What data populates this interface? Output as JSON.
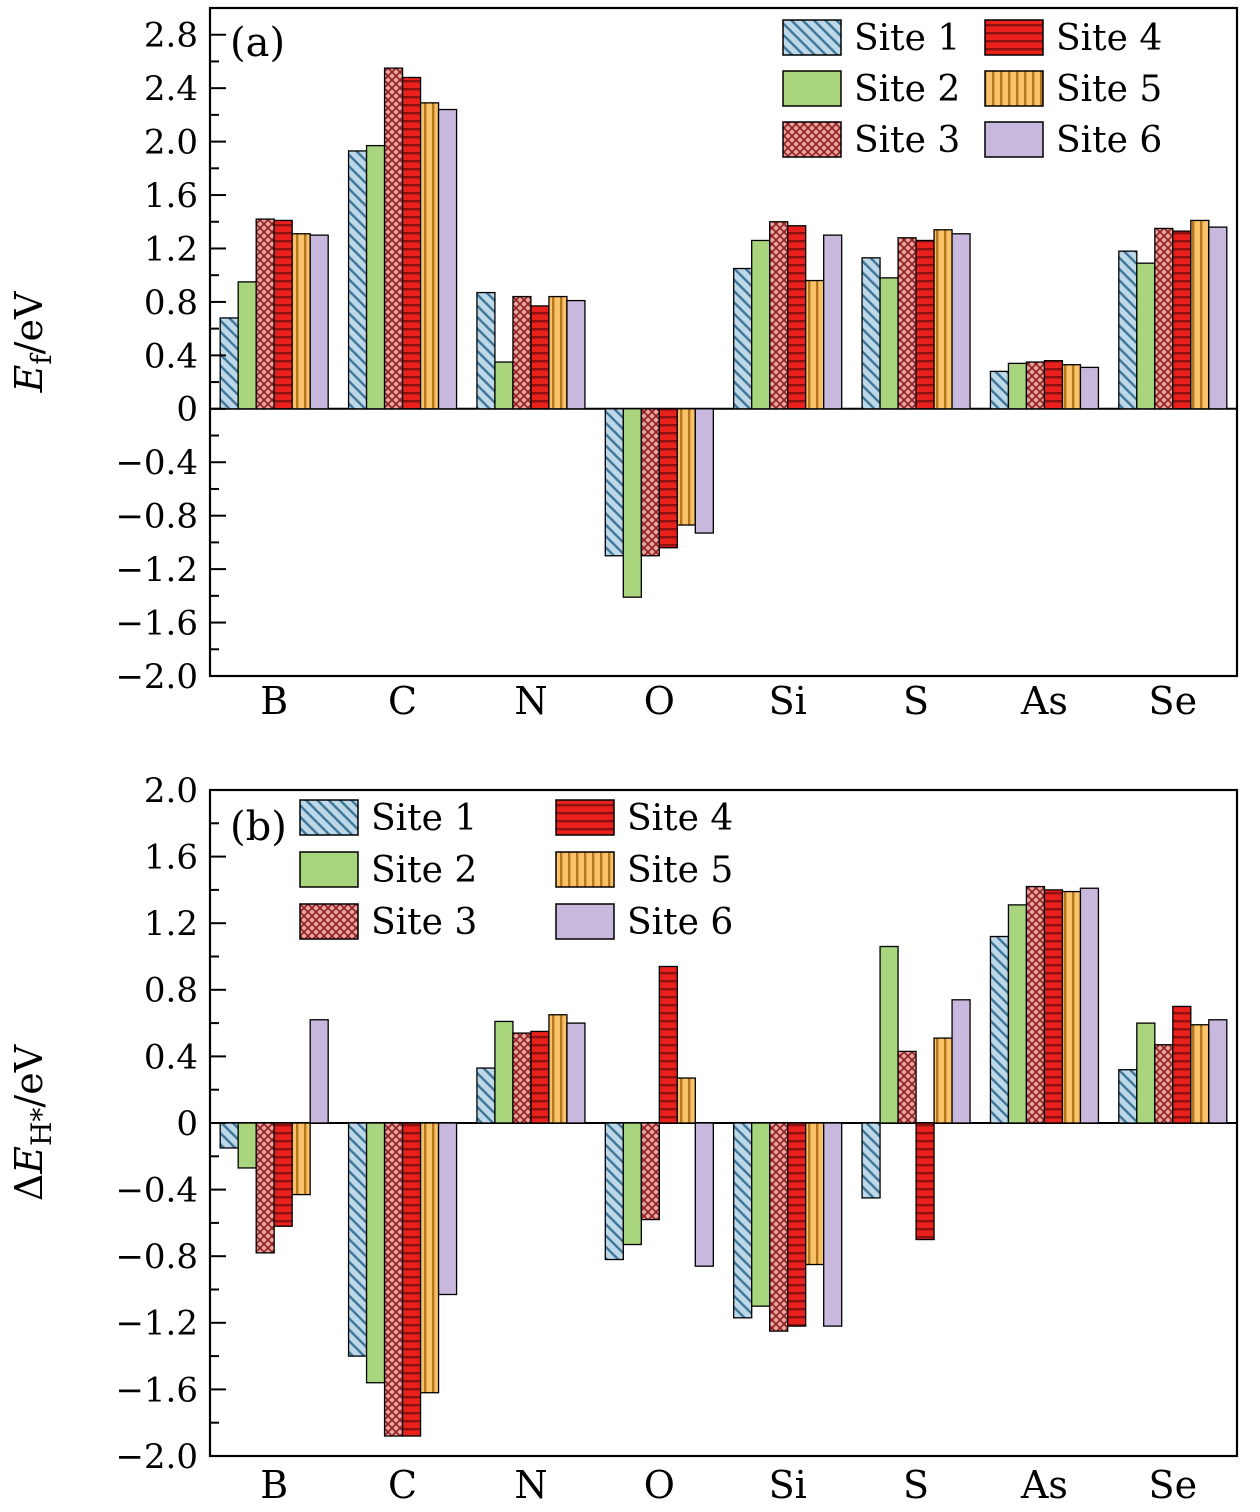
{
  "styles": {
    "bar_border": "#000000",
    "frame_color": "#000000",
    "sites": [
      {
        "name": "Site 1",
        "fill": "#bdd8e8",
        "hatch": "/",
        "hatch_color": "#3f7596"
      },
      {
        "name": "Site 2",
        "fill": "#a9d57e",
        "hatch": "none",
        "hatch_color": ""
      },
      {
        "name": "Site 3",
        "fill": "#eaa29e",
        "hatch": "x",
        "hatch_color": "#8b1f1f"
      },
      {
        "name": "Site 4",
        "fill": "#e8211c",
        "hatch": "-",
        "hatch_color": "#8f1010"
      },
      {
        "name": "Site 5",
        "fill": "#f9c168",
        "hatch": "|",
        "hatch_color": "#b5771e"
      },
      {
        "name": "Site 6",
        "fill": "#c9b8dd",
        "hatch": "none",
        "hatch_color": ""
      }
    ]
  },
  "chart_data": [
    {
      "id": "chart-a",
      "type": "bar",
      "panel_label": "(a)",
      "title": "",
      "xlabel": "",
      "ylabel": "E_f/eV",
      "ylabel_parts": [
        {
          "t": "E",
          "italic": true
        },
        {
          "t": "f",
          "sub": true
        },
        {
          "t": "/eV"
        }
      ],
      "ylim": [
        -2.0,
        2.8
      ],
      "ytick_step": 0.4,
      "grid": false,
      "legend_position": "top-right",
      "categories": [
        "B",
        "C",
        "N",
        "O",
        "Si",
        "S",
        "As",
        "Se"
      ],
      "series": [
        {
          "name": "Site 1",
          "values": [
            0.68,
            1.93,
            0.87,
            -1.1,
            1.05,
            1.13,
            0.28,
            1.18
          ]
        },
        {
          "name": "Site 2",
          "values": [
            0.95,
            1.97,
            0.35,
            -1.41,
            1.26,
            0.98,
            0.34,
            1.09
          ]
        },
        {
          "name": "Site 3",
          "values": [
            1.42,
            2.55,
            0.84,
            -1.1,
            1.4,
            1.28,
            0.35,
            1.35
          ]
        },
        {
          "name": "Site 4",
          "values": [
            1.41,
            2.48,
            0.77,
            -1.04,
            1.37,
            1.26,
            0.36,
            1.33
          ]
        },
        {
          "name": "Site 5",
          "values": [
            1.31,
            2.29,
            0.84,
            -0.87,
            0.96,
            1.34,
            0.33,
            1.41
          ]
        },
        {
          "name": "Site 6",
          "values": [
            1.3,
            2.24,
            0.81,
            -0.93,
            1.3,
            1.31,
            0.31,
            1.36
          ]
        }
      ]
    },
    {
      "id": "chart-b",
      "type": "bar",
      "panel_label": "(b)",
      "title": "",
      "xlabel": "",
      "ylabel": "ΔE_H*/eV",
      "ylabel_parts": [
        {
          "t": "Δ"
        },
        {
          "t": "E",
          "italic": true
        },
        {
          "t": "H*",
          "sub": true
        },
        {
          "t": "/eV"
        }
      ],
      "ylim": [
        -2.0,
        2.0
      ],
      "ytick_step": 0.4,
      "grid": false,
      "legend_position": "top-left",
      "categories": [
        "B",
        "C",
        "N",
        "O",
        "Si",
        "S",
        "As",
        "Se"
      ],
      "series": [
        {
          "name": "Site 1",
          "values": [
            -0.15,
            -1.4,
            0.33,
            -0.82,
            -1.17,
            -0.45,
            1.12,
            0.32
          ]
        },
        {
          "name": "Site 2",
          "values": [
            -0.27,
            -1.56,
            0.61,
            -0.73,
            -1.1,
            1.06,
            1.31,
            0.6
          ]
        },
        {
          "name": "Site 3",
          "values": [
            -0.78,
            -1.88,
            0.54,
            -0.58,
            -1.25,
            0.43,
            1.42,
            0.47
          ]
        },
        {
          "name": "Site 4",
          "values": [
            -0.62,
            -1.88,
            0.55,
            0.94,
            -1.22,
            -0.7,
            1.4,
            0.7
          ]
        },
        {
          "name": "Site 5",
          "values": [
            -0.43,
            -1.62,
            0.65,
            0.27,
            -0.85,
            0.51,
            1.39,
            0.59
          ]
        },
        {
          "name": "Site 6",
          "values": [
            0.62,
            -1.03,
            0.6,
            -0.86,
            -1.22,
            0.74,
            1.41,
            0.62
          ]
        }
      ]
    }
  ]
}
